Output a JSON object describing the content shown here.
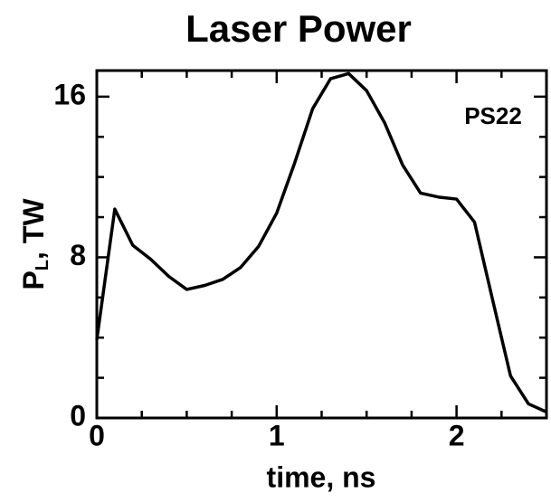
{
  "chart_data": {
    "type": "line",
    "title": "Laser Power",
    "xlabel": "time, ns",
    "ylabel": {
      "main": "P",
      "sub": "L",
      "rest": ", TW"
    },
    "annotation": "PS22",
    "x": [
      0,
      0.1,
      0.2,
      0.3,
      0.4,
      0.5,
      0.6,
      0.7,
      0.8,
      0.9,
      1.0,
      1.1,
      1.2,
      1.3,
      1.4,
      1.5,
      1.6,
      1.7,
      1.8,
      1.9,
      2.0,
      2.1,
      2.2,
      2.3,
      2.4,
      2.5
    ],
    "series": [
      {
        "name": "PS22",
        "color": "#000000",
        "values": [
          3.9,
          10.4,
          8.6,
          7.9,
          7.05,
          6.4,
          6.6,
          6.9,
          7.5,
          8.55,
          10.2,
          12.7,
          15.4,
          16.9,
          17.15,
          16.3,
          14.7,
          12.6,
          11.2,
          11.0,
          10.9,
          9.75,
          5.9,
          2.1,
          0.7,
          0.3
        ]
      }
    ],
    "xlim": [
      0,
      2.5
    ],
    "ylim": [
      0,
      17.3
    ],
    "xticks": [
      0,
      1,
      2
    ],
    "yticks": [
      0,
      8,
      16
    ],
    "xminorticks": [
      0.25,
      0.5,
      0.75,
      1.25,
      1.5,
      1.75,
      2.25
    ],
    "yminorticks": [
      2,
      4,
      6,
      10,
      12,
      14
    ]
  }
}
